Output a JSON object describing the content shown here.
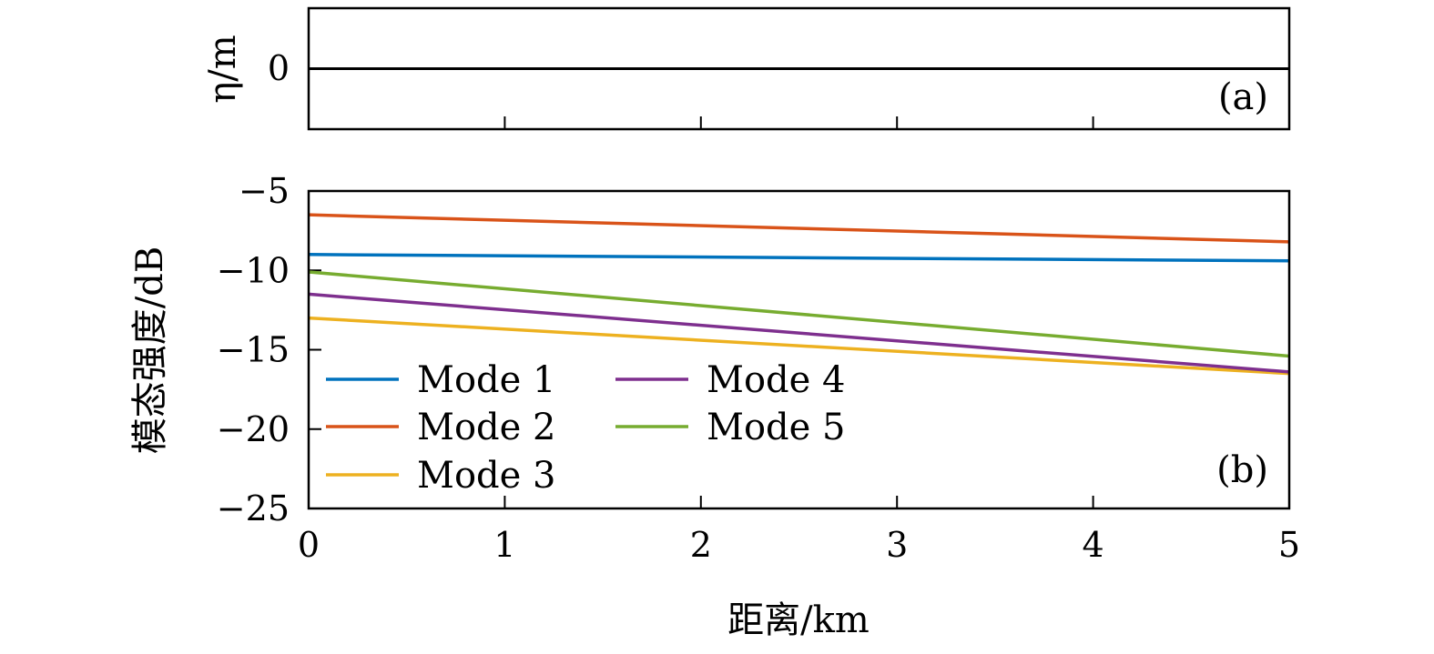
{
  "chart_data": [
    {
      "panel": "(a)",
      "type": "line",
      "ylabel": "η/m",
      "yticks": [
        "0"
      ],
      "ylim": [
        -1,
        1
      ],
      "xlim": [
        0,
        5
      ],
      "series": [
        {
          "x": [
            0,
            5
          ],
          "y": [
            0,
            0
          ],
          "color": "#000000"
        }
      ]
    },
    {
      "panel": "(b)",
      "type": "line",
      "xlabel": "距离/km",
      "ylabel": "模态强度/dB",
      "xlim": [
        0,
        5
      ],
      "ylim": [
        -25,
        -5
      ],
      "xticks": [
        0,
        1,
        2,
        3,
        4,
        5
      ],
      "yticks": [
        -5,
        -10,
        -15,
        -20,
        -25
      ],
      "yticklabels": [
        "−5",
        "−10",
        "−15",
        "−20",
        "−25"
      ],
      "legend_placement": "lower-left",
      "series": [
        {
          "name": "Mode 1",
          "color": "#0072BD",
          "x": [
            0,
            5
          ],
          "y": [
            -9.0,
            -9.4
          ]
        },
        {
          "name": "Mode 2",
          "color": "#D95319",
          "x": [
            0,
            5
          ],
          "y": [
            -6.5,
            -8.2
          ]
        },
        {
          "name": "Mode 3",
          "color": "#EDB120",
          "x": [
            0,
            5
          ],
          "y": [
            -13.0,
            -16.5
          ]
        },
        {
          "name": "Mode 4",
          "color": "#7E2F8E",
          "x": [
            0,
            5
          ],
          "y": [
            -11.5,
            -16.4
          ]
        },
        {
          "name": "Mode 5",
          "color": "#77AC30",
          "x": [
            0,
            5
          ],
          "y": [
            -10.1,
            -15.4
          ]
        }
      ]
    }
  ]
}
